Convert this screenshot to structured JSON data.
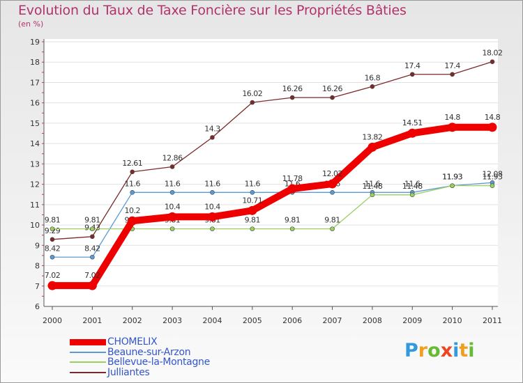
{
  "chart_data": {
    "type": "line",
    "title": "Evolution du Taux de Taxe Foncière sur les Propriétés Bâties",
    "ylabel": "(en %)",
    "xlabel": "",
    "ylim": [
      6,
      19
    ],
    "yticks": [
      "6",
      "7",
      "8",
      "9",
      "10",
      "11",
      "12",
      "13",
      "14",
      "15",
      "16",
      "17",
      "18",
      "19"
    ],
    "categories": [
      "2000",
      "2001",
      "2002",
      "2003",
      "2004",
      "2005",
      "2006",
      "2007",
      "2008",
      "2009",
      "2010",
      "2011"
    ],
    "series": [
      {
        "name": "Julliantes",
        "color": "#7a2a2a",
        "values": [
          9.29,
          9.43,
          12.61,
          12.86,
          14.3,
          16.02,
          16.26,
          16.26,
          16.8,
          17.4,
          17.4,
          18.02
        ],
        "labels": [
          "9.29",
          "9.43",
          "12.61",
          "12.86",
          "14.3",
          "16.02",
          "16.26",
          "16.26",
          "16.8",
          "17.4",
          "17.4",
          "18.02"
        ]
      },
      {
        "name": "Beaune-sur-Arzon",
        "color": "#5b9bd5",
        "values": [
          8.42,
          8.42,
          11.6,
          11.6,
          11.6,
          11.6,
          11.6,
          11.6,
          11.6,
          11.6,
          11.93,
          12.08
        ],
        "labels": [
          "8.42",
          "8.42",
          "11.6",
          "11.6",
          "11.6",
          "11.6",
          "11.6",
          "11.6",
          "11.6",
          "11.6",
          "11.93",
          "12.08"
        ]
      },
      {
        "name": "Bellevue-la-Montagne",
        "color": "#9ad060",
        "values": [
          9.81,
          9.81,
          9.81,
          9.81,
          9.81,
          9.81,
          9.81,
          9.81,
          11.48,
          11.48,
          11.93,
          11.93
        ],
        "labels": [
          "9.81",
          "9.81",
          "9.81",
          "9.81",
          "9.81",
          "9.81",
          "9.81",
          "9.81",
          "11.48",
          "11.48",
          "11.93",
          "11.93"
        ]
      },
      {
        "name": "CHOMELIX",
        "color": "#ee0000",
        "values": [
          7.02,
          7.02,
          10.2,
          10.4,
          10.4,
          10.71,
          11.78,
          12.02,
          13.82,
          14.51,
          14.8,
          14.8
        ],
        "labels": [
          "7.02",
          "7.02",
          "10.2",
          "10.4",
          "10.4",
          "10.71",
          "11.78",
          "12.02",
          "13.82",
          "14.51",
          "14.8",
          "14.8"
        ]
      }
    ],
    "legend": [
      "CHOMELIX",
      "Beaune-sur-Arzon",
      "Bellevue-la-Montagne",
      "Julliantes"
    ],
    "legend_colors": [
      "#ee0000",
      "#5b9bd5",
      "#9ad060",
      "#7a2a2a"
    ],
    "legend_position": "bottom-left"
  },
  "brand": {
    "letters": [
      "P",
      "r",
      "o",
      "x",
      "i",
      "t",
      "i"
    ],
    "colors": [
      "#3399dd",
      "#f0a020",
      "#66bb33",
      "#ee4422",
      "#3399dd",
      "#f0a020",
      "#66bb33"
    ]
  }
}
